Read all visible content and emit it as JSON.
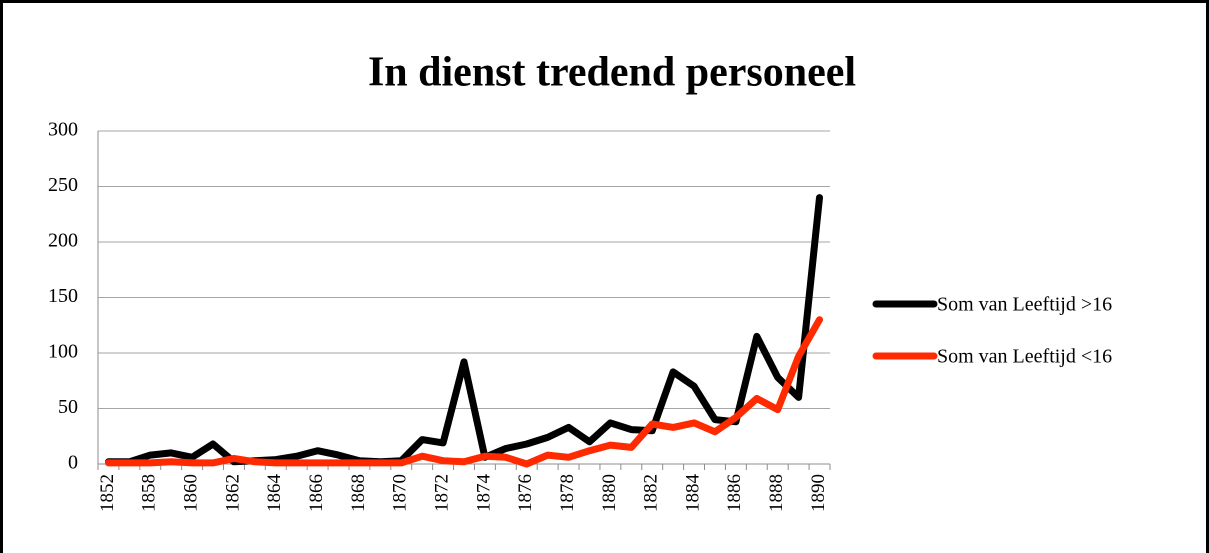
{
  "chart_data": {
    "type": "line",
    "title": "In dienst tredend personeel",
    "categories": [
      "1852",
      null,
      "1858",
      null,
      "1860",
      null,
      "1862",
      null,
      "1864",
      null,
      "1866",
      null,
      "1868",
      null,
      "1870",
      null,
      "1872",
      null,
      "1874",
      null,
      "1876",
      null,
      "1878",
      null,
      "1880",
      null,
      "1882",
      null,
      "1884",
      null,
      "1886",
      null,
      "1888",
      null,
      "1890"
    ],
    "series": [
      {
        "name": "Som van Leeftijd >16",
        "color": "#000000",
        "values": [
          2,
          2,
          8,
          10,
          6,
          18,
          2,
          3,
          4,
          7,
          12,
          8,
          3,
          2,
          3,
          22,
          19,
          92,
          6,
          14,
          18,
          24,
          33,
          20,
          37,
          31,
          30,
          83,
          70,
          40,
          38,
          115,
          78,
          60,
          240
        ]
      },
      {
        "name": "Som van Leeftijd <16",
        "color": "#ff2a00",
        "values": [
          1,
          1,
          1,
          2,
          1,
          1,
          5,
          2,
          1,
          1,
          1,
          1,
          1,
          1,
          1,
          7,
          3,
          2,
          7,
          6,
          0,
          8,
          6,
          12,
          17,
          15,
          36,
          33,
          37,
          29,
          42,
          59,
          49,
          97,
          130
        ]
      }
    ],
    "ylim": [
      0,
      300
    ],
    "yticks": [
      0,
      50,
      100,
      150,
      200,
      250,
      300
    ],
    "grid": true,
    "legend": "right"
  }
}
